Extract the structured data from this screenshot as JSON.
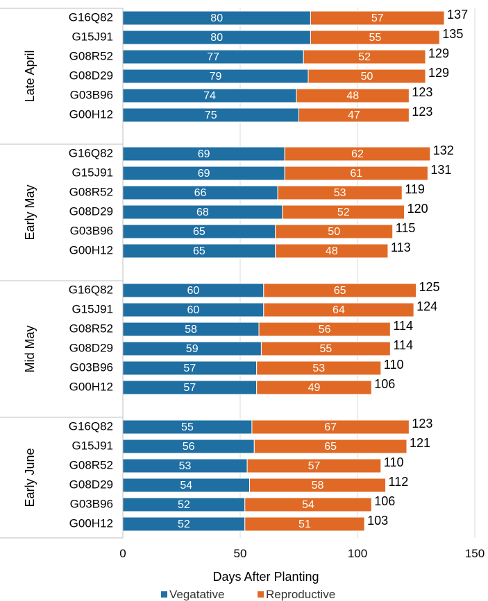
{
  "chart_data": {
    "type": "bar",
    "orientation": "horizontal",
    "stacked": true,
    "xlabel": "Days After Planting",
    "xlim": [
      0,
      150
    ],
    "xticks": [
      "0",
      "50",
      "100",
      "150"
    ],
    "grid": "vertical",
    "legend_position": "bottom",
    "colors": {
      "vegetative": "#1f6fa3",
      "reproductive": "#e06a25"
    },
    "series": [
      {
        "name": "Vegatative"
      },
      {
        "name": "Reproductive"
      }
    ],
    "groups": [
      {
        "label": "Late April",
        "rows": [
          {
            "category": "G16Q82",
            "vegetative": 80,
            "reproductive": 57,
            "total": 137
          },
          {
            "category": "G15J91",
            "vegetative": 80,
            "reproductive": 55,
            "total": 135
          },
          {
            "category": "G08R52",
            "vegetative": 77,
            "reproductive": 52,
            "total": 129
          },
          {
            "category": "G08D29",
            "vegetative": 79,
            "reproductive": 50,
            "total": 129
          },
          {
            "category": "G03B96",
            "vegetative": 74,
            "reproductive": 48,
            "total": 123
          },
          {
            "category": "G00H12",
            "vegetative": 75,
            "reproductive": 47,
            "total": 123
          }
        ]
      },
      {
        "label": "Early May",
        "rows": [
          {
            "category": "G16Q82",
            "vegetative": 69,
            "reproductive": 62,
            "total": 132
          },
          {
            "category": "G15J91",
            "vegetative": 69,
            "reproductive": 61,
            "total": 131
          },
          {
            "category": "G08R52",
            "vegetative": 66,
            "reproductive": 53,
            "total": 119
          },
          {
            "category": "G08D29",
            "vegetative": 68,
            "reproductive": 52,
            "total": 120
          },
          {
            "category": "G03B96",
            "vegetative": 65,
            "reproductive": 50,
            "total": 115
          },
          {
            "category": "G00H12",
            "vegetative": 65,
            "reproductive": 48,
            "total": 113
          }
        ]
      },
      {
        "label": "Mid May",
        "rows": [
          {
            "category": "G16Q82",
            "vegetative": 60,
            "reproductive": 65,
            "total": 125
          },
          {
            "category": "G15J91",
            "vegetative": 60,
            "reproductive": 64,
            "total": 124
          },
          {
            "category": "G08R52",
            "vegetative": 58,
            "reproductive": 56,
            "total": 114
          },
          {
            "category": "G08D29",
            "vegetative": 59,
            "reproductive": 55,
            "total": 114
          },
          {
            "category": "G03B96",
            "vegetative": 57,
            "reproductive": 53,
            "total": 110
          },
          {
            "category": "G00H12",
            "vegetative": 57,
            "reproductive": 49,
            "total": 106
          }
        ]
      },
      {
        "label": "Early June",
        "rows": [
          {
            "category": "G16Q82",
            "vegetative": 55,
            "reproductive": 67,
            "total": 123
          },
          {
            "category": "G15J91",
            "vegetative": 56,
            "reproductive": 65,
            "total": 121
          },
          {
            "category": "G08R52",
            "vegetative": 53,
            "reproductive": 57,
            "total": 110
          },
          {
            "category": "G08D29",
            "vegetative": 54,
            "reproductive": 58,
            "total": 112
          },
          {
            "category": "G03B96",
            "vegetative": 52,
            "reproductive": 54,
            "total": 106
          },
          {
            "category": "G00H12",
            "vegetative": 52,
            "reproductive": 51,
            "total": 103
          }
        ]
      }
    ]
  }
}
